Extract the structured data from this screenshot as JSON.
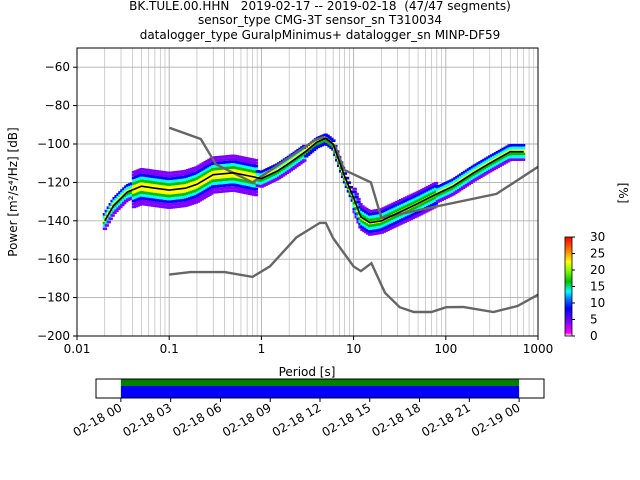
{
  "title": {
    "line1": "BK.TULE.00.HHN   2019-02-17 -- 2019-02-18  (47/47 segments)",
    "line2": "sensor_type CMG-3T sensor_sn T310034",
    "line3": "datalogger_type GuralpMinimus+ datalogger_sn MINP-DF59"
  },
  "chart_data": [
    {
      "type": "heatmap",
      "title": "BK.TULE.00.HHN   2019-02-17 -- 2019-02-18  (47/47 segments)",
      "xlabel": "Period [s]",
      "ylabel": "Power [m²/s⁴/Hz] [dB]",
      "xscale": "log",
      "xlim": [
        0.01,
        1000
      ],
      "ylim": [
        -200,
        -50
      ],
      "grid": true,
      "x_ticks": [
        "0.01",
        "0.1",
        "1",
        "10",
        "100",
        "1000"
      ],
      "y_ticks": [
        "−200",
        "−180",
        "−160",
        "−140",
        "−120",
        "−100",
        "−80",
        "−60"
      ],
      "colorbar": {
        "label": "[%]",
        "ticks": [
          "0",
          "5",
          "10",
          "15",
          "20",
          "25",
          "30"
        ],
        "range": [
          0,
          30
        ]
      },
      "series": [
        {
          "name": "",
          "role": "noise-model-high",
          "color": "#666666",
          "points": [
            [
              0.1,
              -91.5
            ],
            [
              0.22,
              -97.4
            ],
            [
              0.32,
              -110.5
            ],
            [
              0.8,
              -120
            ],
            [
              3.8,
              -98
            ],
            [
              4.6,
              -96.5
            ],
            [
              6.3,
              -101
            ],
            [
              7.9,
              -113.5
            ],
            [
              15.4,
              -120
            ],
            [
              20,
              -138.5
            ],
            [
              354.8,
              -126
            ],
            [
              10000,
              -80.5
            ]
          ]
        },
        {
          "name": "",
          "role": "noise-model-low",
          "color": "#666666",
          "points": [
            [
              0.1,
              -168
            ],
            [
              0.17,
              -166.7
            ],
            [
              0.4,
              -166.7
            ],
            [
              0.8,
              -169.2
            ],
            [
              1.24,
              -163.7
            ],
            [
              2.4,
              -148.6
            ],
            [
              4.3,
              -141.1
            ],
            [
              5,
              -141.1
            ],
            [
              6,
              -149
            ],
            [
              10,
              -163.8
            ],
            [
              12,
              -166.2
            ],
            [
              15.6,
              -162.1
            ],
            [
              21.9,
              -177.5
            ],
            [
              31.6,
              -185
            ],
            [
              45,
              -187.5
            ],
            [
              70,
              -187.5
            ],
            [
              101,
              -185
            ],
            [
              154,
              -184.9
            ],
            [
              328,
              -187.5
            ],
            [
              600,
              -184.4
            ],
            [
              1000,
              -178.5
            ]
          ]
        },
        {
          "name": "",
          "role": "mean-psd",
          "color": "#000000",
          "points": [
            [
              0.02,
              -140
            ],
            [
              0.025,
              -132
            ],
            [
              0.035,
              -125
            ],
            [
              0.05,
              -122
            ],
            [
              0.07,
              -123
            ],
            [
              0.1,
              -124
            ],
            [
              0.15,
              -123
            ],
            [
              0.2,
              -121
            ],
            [
              0.3,
              -116
            ],
            [
              0.5,
              -115
            ],
            [
              0.8,
              -117
            ],
            [
              1,
              -118
            ],
            [
              1.5,
              -114
            ],
            [
              2,
              -110
            ],
            [
              3,
              -104
            ],
            [
              4,
              -99
            ],
            [
              5,
              -97
            ],
            [
              6,
              -100
            ],
            [
              8,
              -117
            ],
            [
              10,
              -128
            ],
            [
              12,
              -138
            ],
            [
              15,
              -141
            ],
            [
              20,
              -140
            ],
            [
              30,
              -136
            ],
            [
              50,
              -131
            ],
            [
              80,
              -126
            ],
            [
              120,
              -122
            ],
            [
              200,
              -115
            ],
            [
              300,
              -110
            ],
            [
              500,
              -104
            ],
            [
              700,
              -104
            ]
          ]
        }
      ]
    },
    {
      "type": "timeline",
      "x_ticks": [
        "02-18 00",
        "02-18 03",
        "02-18 06",
        "02-18 09",
        "02-18 12",
        "02-18 15",
        "02-18 18",
        "02-18 21",
        "02-19 00"
      ],
      "xlim_hours": [
        -1.5,
        25.5
      ],
      "bands": [
        {
          "name": "",
          "color": "#008000",
          "start_hour": 0,
          "end_hour": 24
        },
        {
          "name": "",
          "color": "#0000ff",
          "start_hour": 0,
          "end_hour": 24
        }
      ]
    }
  ]
}
